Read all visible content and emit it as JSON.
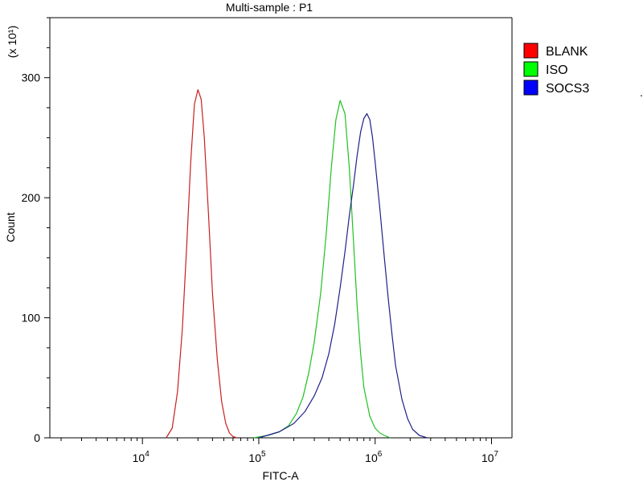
{
  "chart_data": {
    "type": "line",
    "title": "Multi-sample : P1",
    "xlabel": "FITC-A",
    "ylabel": "Count",
    "y_multiplier_label": "(x 10¹)",
    "x_scale": "log",
    "xlim": [
      1600,
      15000000
    ],
    "ylim": [
      0,
      350
    ],
    "grid": false,
    "legend_position": "right",
    "x_ticks": [
      {
        "value": 10000,
        "base": "10",
        "exp": "4"
      },
      {
        "value": 100000,
        "base": "10",
        "exp": "5"
      },
      {
        "value": 1000000,
        "base": "10",
        "exp": "6"
      },
      {
        "value": 10000000,
        "base": "10",
        "exp": "7"
      }
    ],
    "y_ticks": [
      0,
      100,
      200,
      300
    ],
    "series": [
      {
        "name": "BLANK",
        "color": "#c82020",
        "legend_color": "#ff0000",
        "x": [
          16000,
          18000,
          20000,
          22000,
          24000,
          26000,
          28000,
          30000,
          32000,
          34000,
          37000,
          40000,
          44000,
          48000,
          52000,
          56000,
          60000,
          65000
        ],
        "y": [
          0,
          8,
          38,
          90,
          160,
          230,
          278,
          290,
          282,
          250,
          185,
          120,
          65,
          30,
          12,
          4,
          1,
          0
        ]
      },
      {
        "name": "ISO",
        "color": "#20c020",
        "legend_color": "#00ff00",
        "x": [
          90000,
          120000,
          150000,
          180000,
          210000,
          240000,
          270000,
          300000,
          340000,
          380000,
          420000,
          460000,
          500000,
          550000,
          600000,
          650000,
          700000,
          750000,
          800000,
          900000,
          1000000,
          1100000,
          1200000,
          1350000
        ],
        "y": [
          0,
          2,
          5,
          10,
          20,
          34,
          55,
          80,
          120,
          170,
          225,
          265,
          281,
          270,
          225,
          165,
          110,
          70,
          42,
          18,
          8,
          4,
          2,
          0
        ]
      },
      {
        "name": "SOCS3",
        "color": "#20208a",
        "legend_color": "#0000ff",
        "x": [
          100000,
          150000,
          200000,
          250000,
          300000,
          350000,
          400000,
          450000,
          500000,
          550000,
          600000,
          650000,
          700000,
          750000,
          800000,
          850000,
          900000,
          950000,
          1000000,
          1100000,
          1200000,
          1300000,
          1400000,
          1500000,
          1700000,
          1900000,
          2100000,
          2400000,
          2800000
        ],
        "y": [
          0,
          5,
          12,
          22,
          35,
          50,
          70,
          95,
          125,
          155,
          185,
          210,
          235,
          255,
          266,
          270,
          265,
          250,
          230,
          190,
          150,
          115,
          85,
          60,
          32,
          16,
          7,
          2,
          0
        ]
      }
    ]
  }
}
